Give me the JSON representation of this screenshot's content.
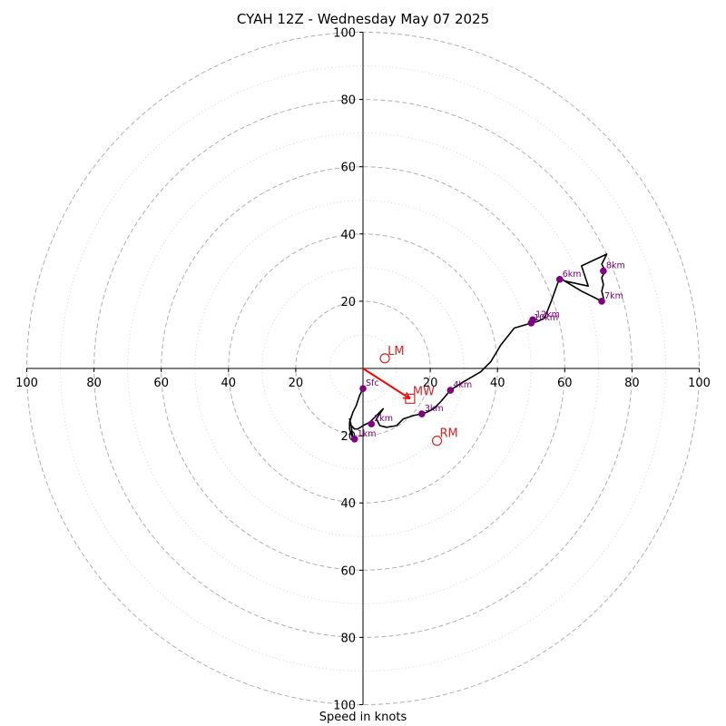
{
  "chart_data": {
    "type": "scatter",
    "title": "CYAH 12Z - Wednesday May 07 2025",
    "xlabel": "Speed in knots",
    "ylabel": "",
    "xlim": [
      -100,
      100
    ],
    "ylim": [
      -100,
      100
    ],
    "rings": {
      "major": [
        20,
        40,
        60,
        80,
        100
      ],
      "minor": [
        10,
        30,
        50,
        70,
        90
      ]
    },
    "tick_labels": {
      "left": [
        "100",
        "80",
        "60",
        "40",
        "20"
      ],
      "right": [
        "20",
        "40",
        "60",
        "80",
        "100"
      ],
      "top": [
        "20",
        "40",
        "60",
        "80",
        "100"
      ],
      "bottom": [
        "20",
        "40",
        "60",
        "80",
        "100"
      ]
    },
    "hodograph_trace": [
      [
        0,
        -6
      ],
      [
        -1,
        -8
      ],
      [
        -2,
        -11
      ],
      [
        -3,
        -13
      ],
      [
        -4,
        -16
      ],
      [
        -4,
        -18
      ],
      [
        -3,
        -21
      ],
      [
        -3.5,
        -17
      ],
      [
        -4,
        -15
      ],
      [
        -3.5,
        -17
      ],
      [
        -2.5,
        -18
      ],
      [
        -1.5,
        -18
      ],
      [
        0,
        -17
      ],
      [
        2,
        -16
      ],
      [
        4,
        -14
      ],
      [
        6,
        -12
      ],
      [
        4,
        -15
      ],
      [
        5,
        -17
      ],
      [
        7,
        -17.5
      ],
      [
        10,
        -17
      ],
      [
        12,
        -15
      ],
      [
        15,
        -14
      ],
      [
        17.5,
        -13.5
      ],
      [
        19,
        -13
      ],
      [
        21,
        -12
      ],
      [
        23,
        -10
      ],
      [
        26,
        -6.5
      ],
      [
        29,
        -4.5
      ],
      [
        35,
        -1
      ],
      [
        38,
        2
      ],
      [
        41,
        7
      ],
      [
        45,
        12
      ],
      [
        50,
        13.5
      ],
      [
        52,
        14
      ],
      [
        54,
        15
      ],
      [
        56,
        20
      ],
      [
        58.5,
        27
      ],
      [
        60,
        26
      ],
      [
        67,
        24.5
      ],
      [
        65,
        30.5
      ],
      [
        72.5,
        34
      ],
      [
        71,
        31
      ],
      [
        72,
        29
      ],
      [
        71,
        27
      ],
      [
        71.5,
        25
      ],
      [
        71,
        23
      ],
      [
        71.5,
        21
      ],
      [
        71,
        20
      ],
      [
        65,
        23
      ],
      [
        60,
        26
      ]
    ],
    "height_markers": [
      {
        "label": "Sfc",
        "x": 0,
        "y": -6
      },
      {
        "label": "1km",
        "x": -2.5,
        "y": -21
      },
      {
        "label": "2km",
        "x": 2.5,
        "y": -16.5
      },
      {
        "label": "3km",
        "x": 17.5,
        "y": -13.5
      },
      {
        "label": "4km",
        "x": 26,
        "y": -6.5
      },
      {
        "label": "10km",
        "x": 50,
        "y": 13.5
      },
      {
        "label": "12km",
        "x": 50.5,
        "y": 14.5
      },
      {
        "label": "6km",
        "x": 58.5,
        "y": 26.5
      },
      {
        "label": "8km",
        "x": 71.5,
        "y": 29
      },
      {
        "label": "7km",
        "x": 71,
        "y": 20
      }
    ],
    "motions": [
      {
        "label": "LM",
        "x": 6.5,
        "y": 3,
        "marker": "circle"
      },
      {
        "label": "RM",
        "x": 22,
        "y": -21.5,
        "marker": "circle"
      },
      {
        "label": "MW",
        "x": 14,
        "y": -9,
        "marker": "square"
      }
    ],
    "mean_wind_vector": {
      "x": 14,
      "y": -9
    },
    "colors": {
      "trace": "#000000",
      "markers": "#800080",
      "motions": "#d62728",
      "vector": "#ff0000",
      "rings": "#b0b0b0"
    }
  }
}
